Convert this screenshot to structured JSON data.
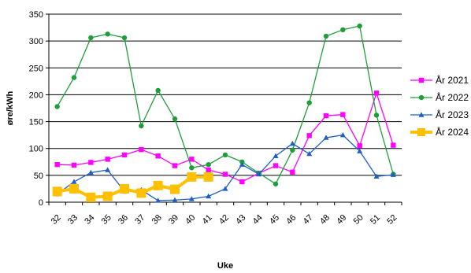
{
  "chart_data": {
    "type": "line",
    "title": "",
    "xlabel": "Uke",
    "ylabel": "øre/kWh",
    "categories": [
      "32",
      "33",
      "34",
      "35",
      "36",
      "37",
      "38",
      "39",
      "40",
      "41",
      "42",
      "43",
      "44",
      "45",
      "46",
      "47",
      "48",
      "49",
      "50",
      "51",
      "52"
    ],
    "ylim": [
      0,
      350
    ],
    "yticks": [
      0,
      50,
      100,
      150,
      200,
      250,
      300,
      350
    ],
    "grid": true,
    "legend_position": "right",
    "series": [
      {
        "name": "År 2021",
        "color": "#FF00FF",
        "marker": "square",
        "values": [
          70,
          69,
          74,
          80,
          88,
          98,
          86,
          68,
          80,
          60,
          52,
          38,
          54,
          68,
          56,
          124,
          161,
          163,
          105,
          203,
          106
        ]
      },
      {
        "name": "År 2022",
        "color": "#1E9E3A",
        "marker": "circle",
        "values": [
          178,
          232,
          306,
          313,
          306,
          142,
          208,
          155,
          64,
          70,
          88,
          75,
          54,
          34,
          97,
          185,
          309,
          321,
          328,
          162,
          52
        ]
      },
      {
        "name": "År 2023",
        "color": "#1F5FC2",
        "marker": "triangle",
        "values": [
          15,
          38,
          55,
          60,
          20,
          23,
          3,
          4,
          6,
          11,
          25,
          70,
          52,
          86,
          109,
          90,
          120,
          125,
          95,
          48,
          51
        ]
      },
      {
        "name": "År 2024",
        "color": "#FFC000",
        "marker": "square",
        "values": [
          20,
          25,
          9,
          11,
          25,
          17,
          31,
          24,
          47,
          47,
          null,
          null,
          null,
          null,
          null,
          null,
          null,
          null,
          null,
          null,
          null
        ]
      }
    ]
  }
}
